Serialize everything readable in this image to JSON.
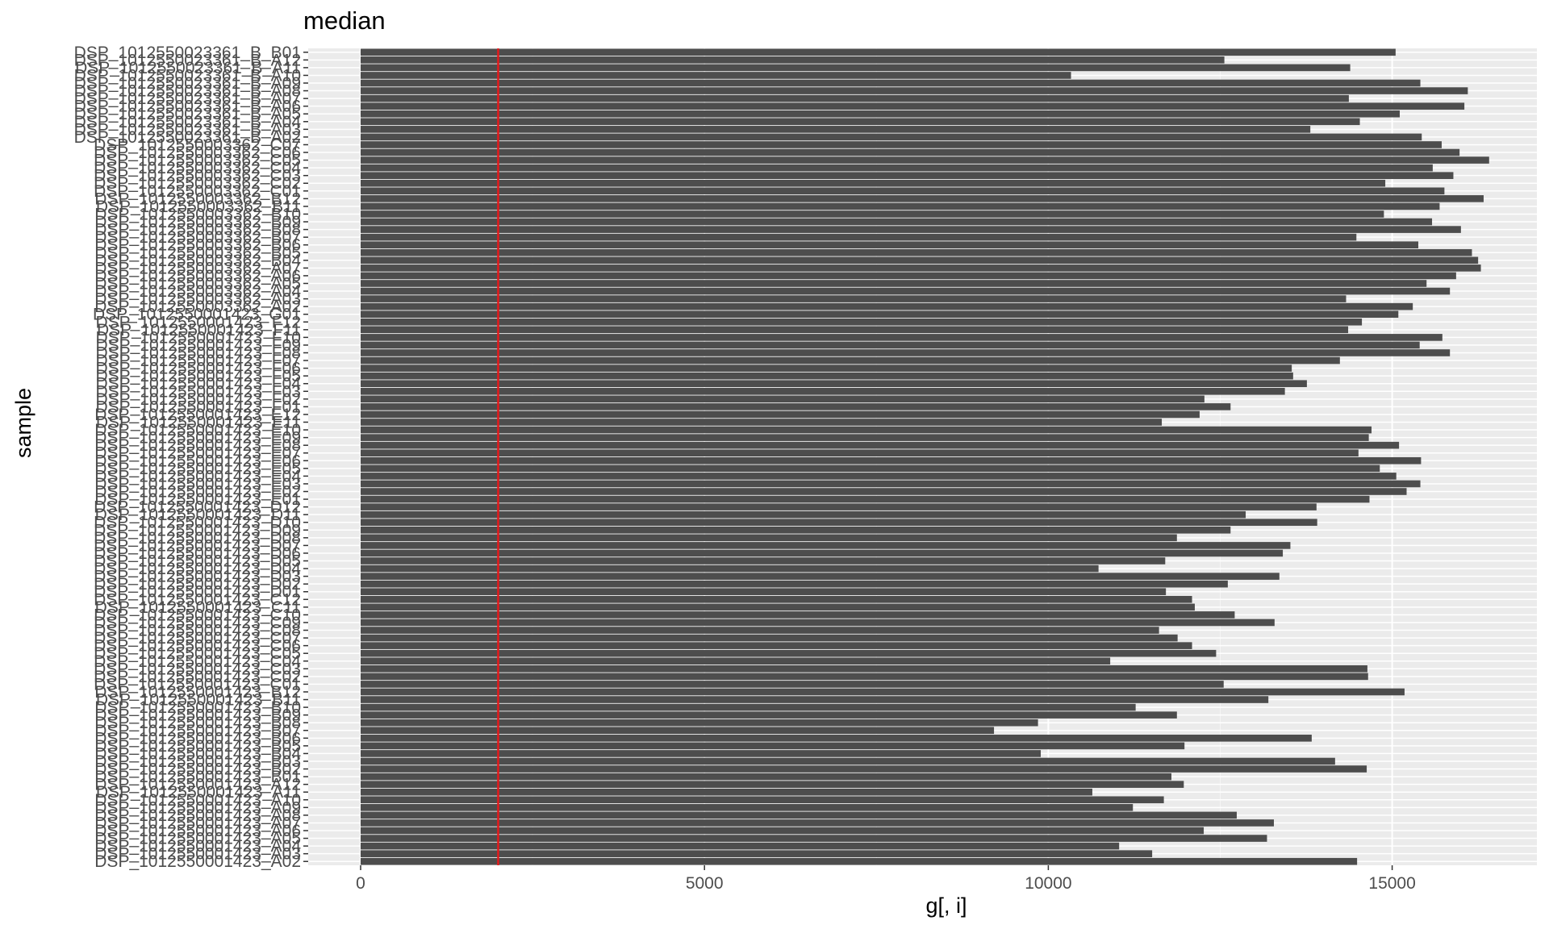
{
  "chart_data": {
    "type": "bar",
    "orientation": "horizontal",
    "title": "median",
    "xlabel": "g[, i]",
    "ylabel": "sample",
    "xlim": [
      -800,
      17000
    ],
    "xticks": [
      0,
      5000,
      10000,
      15000
    ],
    "xtick_labels": [
      "0",
      "5000",
      "10000",
      "15000"
    ],
    "grid": true,
    "bar_color": "#4d4d4d",
    "panel_color": "#ebebeb",
    "reference_line": {
      "value": 2000,
      "color": "#e41a1c"
    },
    "categories": [
      "DSP_1012550023361_B_B01",
      "DSP_1012550023361_B_A12",
      "DSP_1012550023361_B_A11",
      "DSP_1012550023361_B_A10",
      "DSP_1012550023361_B_A09",
      "DSP_1012550023361_B_A08",
      "DSP_1012550023361_B_A07",
      "DSP_1012550023361_B_A06",
      "DSP_1012550023361_B_A05",
      "DSP_1012550023361_B_A04",
      "DSP_1012550023361_B_A03",
      "DSP_1012550023361_B_A02",
      "DSP_1012550003362_C07",
      "DSP_1012550003362_C06",
      "DSP_1012550003362_C05",
      "DSP_1012550003362_C04",
      "DSP_1012550003362_C03",
      "DSP_1012550003362_C02",
      "DSP_1012550003362_C01",
      "DSP_1012550003362_B12",
      "DSP_1012550003362_B11",
      "DSP_1012550003362_B10",
      "DSP_1012550003362_B09",
      "DSP_1012550003362_B08",
      "DSP_1012550003362_B07",
      "DSP_1012550003362_B06",
      "DSP_1012550003362_B05",
      "DSP_1012550003362_B04",
      "DSP_1012550003362_A07",
      "DSP_1012550003362_A06",
      "DSP_1012550003362_A05",
      "DSP_1012550003362_A04",
      "DSP_1012550003362_A03",
      "DSP_1012550003362_A02",
      "DSP_1012550001423_G01",
      "DSP_1012550001423_F12",
      "DSP_1012550001423_F11",
      "DSP_1012550001423_F10",
      "DSP_1012550001423_F09",
      "DSP_1012550001423_F08",
      "DSP_1012550001423_F07",
      "DSP_1012550001423_F06",
      "DSP_1012550001423_F05",
      "DSP_1012550001423_F04",
      "DSP_1012550001423_F03",
      "DSP_1012550001423_F02",
      "DSP_1012550001423_F01",
      "DSP_1012550001423_E12",
      "DSP_1012550001423_E11",
      "DSP_1012550001423_E10",
      "DSP_1012550001423_E09",
      "DSP_1012550001423_E08",
      "DSP_1012550001423_E07",
      "DSP_1012550001423_E06",
      "DSP_1012550001423_E05",
      "DSP_1012550001423_E04",
      "DSP_1012550001423_E03",
      "DSP_1012550001423_E02",
      "DSP_1012550001423_E01",
      "DSP_1012550001423_D12",
      "DSP_1012550001423_D11",
      "DSP_1012550001423_D10",
      "DSP_1012550001423_D09",
      "DSP_1012550001423_D08",
      "DSP_1012550001423_D07",
      "DSP_1012550001423_D06",
      "DSP_1012550001423_D05",
      "DSP_1012550001423_D04",
      "DSP_1012550001423_D03",
      "DSP_1012550001423_D02",
      "DSP_1012550001423_D01",
      "DSP_1012550001423_C12",
      "DSP_1012550001423_C11",
      "DSP_1012550001423_C10",
      "DSP_1012550001423_C09",
      "DSP_1012550001423_C08",
      "DSP_1012550001423_C07",
      "DSP_1012550001423_C06",
      "DSP_1012550001423_C05",
      "DSP_1012550001423_C04",
      "DSP_1012550001423_C03",
      "DSP_1012550001423_C02",
      "DSP_1012550001423_C01",
      "DSP_1012550001423_B12",
      "DSP_1012550001423_B11",
      "DSP_1012550001423_B10",
      "DSP_1012550001423_B09",
      "DSP_1012550001423_B08",
      "DSP_1012550001423_B07",
      "DSP_1012550001423_B06",
      "DSP_1012550001423_B05",
      "DSP_1012550001423_B04",
      "DSP_1012550001423_B03",
      "DSP_1012550001423_B02",
      "DSP_1012550001423_B01",
      "DSP_1012550001423_A12",
      "DSP_1012550001423_A11",
      "DSP_1012550001423_A10",
      "DSP_1012550001423_A09",
      "DSP_1012550001423_A08",
      "DSP_1012550001423_A07",
      "DSP_1012550001423_A06",
      "DSP_1012550001423_A05",
      "DSP_1012550001423_A04",
      "DSP_1012550001423_A03",
      "DSP_1012550001423_A02"
    ],
    "values": [
      15050,
      12560,
      14390,
      10330,
      15410,
      16100,
      14370,
      16050,
      15110,
      14530,
      13810,
      15430,
      15720,
      15980,
      16410,
      15590,
      15890,
      14900,
      15760,
      16330,
      15690,
      14880,
      15580,
      16000,
      14480,
      15380,
      16160,
      16250,
      16290,
      15930,
      15500,
      15840,
      14330,
      15300,
      15090,
      14560,
      14360,
      15730,
      15400,
      15840,
      14240,
      13540,
      13560,
      13760,
      13440,
      12270,
      12650,
      12200,
      11650,
      14700,
      14660,
      15100,
      14510,
      15420,
      14820,
      15060,
      15410,
      15210,
      14670,
      13900,
      12870,
      13910,
      12650,
      11870,
      13520,
      13410,
      11700,
      10730,
      13360,
      12610,
      11710,
      12090,
      12130,
      12710,
      13290,
      11610,
      11880,
      12090,
      12440,
      10900,
      14640,
      14650,
      12550,
      15180,
      13200,
      11270,
      11870,
      9850,
      9210,
      13830,
      11980,
      9890,
      14170,
      14630,
      11790,
      11970,
      10640,
      11680,
      11230,
      12740,
      13280,
      12260,
      13180,
      11030,
      11510,
      14490
    ]
  }
}
